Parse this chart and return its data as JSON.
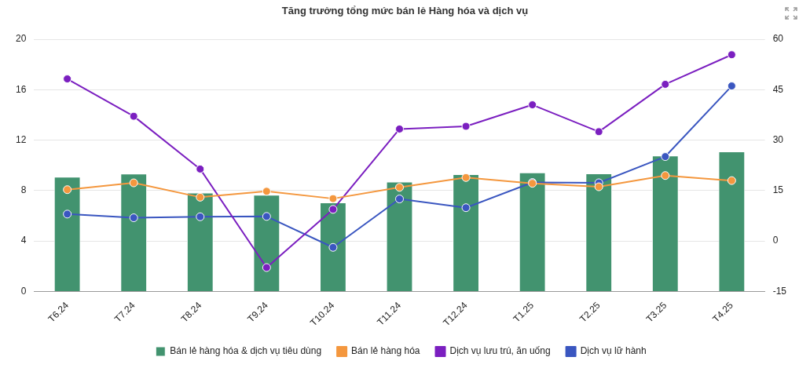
{
  "chart_data": {
    "type": "bar",
    "title": "Tăng trưởng tổng mức bán lẻ Hàng hóa và dịch vụ",
    "categories": [
      "T6.24",
      "T7.24",
      "T8.24",
      "T9.24",
      "T10.24",
      "T11.24",
      "T12.24",
      "T1.25",
      "T2.25",
      "T3.25",
      "T4.25"
    ],
    "series": [
      {
        "name": "Bán lẻ hàng hóa & dịch vụ tiêu dùng",
        "color": "#42936f",
        "values": [
          9.1,
          9.35,
          7.84,
          7.66,
          7.06,
          8.7,
          9.3,
          9.43,
          9.36,
          10.77,
          11.1
        ]
      },
      {
        "name": "Bán lẻ hàng hóa",
        "type": "line",
        "color": "#f4973e",
        "values": [
          8.07,
          8.61,
          7.47,
          7.94,
          7.36,
          8.25,
          9.03,
          8.57,
          8.3,
          9.19,
          8.79
        ]
      },
      {
        "name": "Dịch vụ lưu trú, ăn uống",
        "type": "line",
        "axis": "y2",
        "color": "#7b1fc0",
        "values": [
          48.2,
          37.1,
          21.4,
          -7.9,
          9.4,
          33.3,
          34.1,
          40.5,
          32.5,
          46.6,
          55.4
        ]
      },
      {
        "name": "Dịch vụ lữ hành",
        "type": "line",
        "axis": "y2",
        "color": "#3a56c0",
        "values": [
          8.0,
          6.9,
          7.2,
          7.3,
          -1.9,
          12.5,
          9.9,
          17.4,
          17.3,
          25.1,
          46.1
        ]
      }
    ],
    "ylim": [
      0,
      20
    ],
    "yticks": [
      0,
      4,
      8,
      12,
      16,
      20
    ],
    "y2lim": [
      -15,
      60
    ],
    "y2ticks": [
      -15,
      0,
      15,
      30,
      45,
      60
    ],
    "grid": "y",
    "legend": "bottom",
    "marker": "circle",
    "line_style": "solid"
  }
}
